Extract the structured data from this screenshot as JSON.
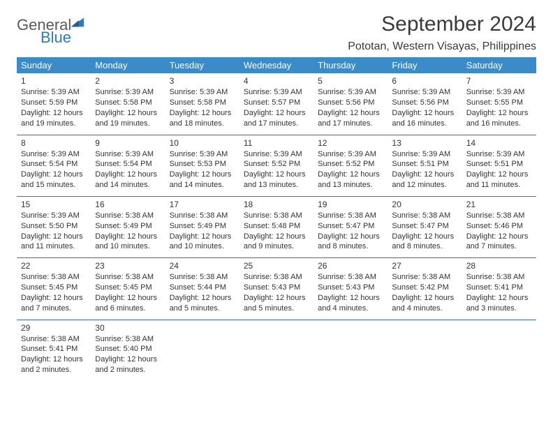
{
  "logo": {
    "text1": "General",
    "text2": "Blue"
  },
  "title": "September 2024",
  "location": "Pototan, Western Visayas, Philippines",
  "colors": {
    "header_bg": "#3b8bc9",
    "header_text": "#ffffff",
    "rule": "#3b6fa0",
    "text": "#333333",
    "logo_gray": "#5a5a5a",
    "logo_blue": "#2b7bbd",
    "background": "#ffffff"
  },
  "weekdays": [
    "Sunday",
    "Monday",
    "Tuesday",
    "Wednesday",
    "Thursday",
    "Friday",
    "Saturday"
  ],
  "weeks": [
    [
      {
        "n": "1",
        "sr": "5:39 AM",
        "ss": "5:59 PM",
        "dl": "12 hours and 19 minutes."
      },
      {
        "n": "2",
        "sr": "5:39 AM",
        "ss": "5:58 PM",
        "dl": "12 hours and 19 minutes."
      },
      {
        "n": "3",
        "sr": "5:39 AM",
        "ss": "5:58 PM",
        "dl": "12 hours and 18 minutes."
      },
      {
        "n": "4",
        "sr": "5:39 AM",
        "ss": "5:57 PM",
        "dl": "12 hours and 17 minutes."
      },
      {
        "n": "5",
        "sr": "5:39 AM",
        "ss": "5:56 PM",
        "dl": "12 hours and 17 minutes."
      },
      {
        "n": "6",
        "sr": "5:39 AM",
        "ss": "5:56 PM",
        "dl": "12 hours and 16 minutes."
      },
      {
        "n": "7",
        "sr": "5:39 AM",
        "ss": "5:55 PM",
        "dl": "12 hours and 16 minutes."
      }
    ],
    [
      {
        "n": "8",
        "sr": "5:39 AM",
        "ss": "5:54 PM",
        "dl": "12 hours and 15 minutes."
      },
      {
        "n": "9",
        "sr": "5:39 AM",
        "ss": "5:54 PM",
        "dl": "12 hours and 14 minutes."
      },
      {
        "n": "10",
        "sr": "5:39 AM",
        "ss": "5:53 PM",
        "dl": "12 hours and 14 minutes."
      },
      {
        "n": "11",
        "sr": "5:39 AM",
        "ss": "5:52 PM",
        "dl": "12 hours and 13 minutes."
      },
      {
        "n": "12",
        "sr": "5:39 AM",
        "ss": "5:52 PM",
        "dl": "12 hours and 13 minutes."
      },
      {
        "n": "13",
        "sr": "5:39 AM",
        "ss": "5:51 PM",
        "dl": "12 hours and 12 minutes."
      },
      {
        "n": "14",
        "sr": "5:39 AM",
        "ss": "5:51 PM",
        "dl": "12 hours and 11 minutes."
      }
    ],
    [
      {
        "n": "15",
        "sr": "5:39 AM",
        "ss": "5:50 PM",
        "dl": "12 hours and 11 minutes."
      },
      {
        "n": "16",
        "sr": "5:38 AM",
        "ss": "5:49 PM",
        "dl": "12 hours and 10 minutes."
      },
      {
        "n": "17",
        "sr": "5:38 AM",
        "ss": "5:49 PM",
        "dl": "12 hours and 10 minutes."
      },
      {
        "n": "18",
        "sr": "5:38 AM",
        "ss": "5:48 PM",
        "dl": "12 hours and 9 minutes."
      },
      {
        "n": "19",
        "sr": "5:38 AM",
        "ss": "5:47 PM",
        "dl": "12 hours and 8 minutes."
      },
      {
        "n": "20",
        "sr": "5:38 AM",
        "ss": "5:47 PM",
        "dl": "12 hours and 8 minutes."
      },
      {
        "n": "21",
        "sr": "5:38 AM",
        "ss": "5:46 PM",
        "dl": "12 hours and 7 minutes."
      }
    ],
    [
      {
        "n": "22",
        "sr": "5:38 AM",
        "ss": "5:45 PM",
        "dl": "12 hours and 7 minutes."
      },
      {
        "n": "23",
        "sr": "5:38 AM",
        "ss": "5:45 PM",
        "dl": "12 hours and 6 minutes."
      },
      {
        "n": "24",
        "sr": "5:38 AM",
        "ss": "5:44 PM",
        "dl": "12 hours and 5 minutes."
      },
      {
        "n": "25",
        "sr": "5:38 AM",
        "ss": "5:43 PM",
        "dl": "12 hours and 5 minutes."
      },
      {
        "n": "26",
        "sr": "5:38 AM",
        "ss": "5:43 PM",
        "dl": "12 hours and 4 minutes."
      },
      {
        "n": "27",
        "sr": "5:38 AM",
        "ss": "5:42 PM",
        "dl": "12 hours and 4 minutes."
      },
      {
        "n": "28",
        "sr": "5:38 AM",
        "ss": "5:41 PM",
        "dl": "12 hours and 3 minutes."
      }
    ],
    [
      {
        "n": "29",
        "sr": "5:38 AM",
        "ss": "5:41 PM",
        "dl": "12 hours and 2 minutes."
      },
      {
        "n": "30",
        "sr": "5:38 AM",
        "ss": "5:40 PM",
        "dl": "12 hours and 2 minutes."
      },
      null,
      null,
      null,
      null,
      null
    ]
  ],
  "labels": {
    "sunrise": "Sunrise: ",
    "sunset": "Sunset: ",
    "daylight": "Daylight: "
  }
}
